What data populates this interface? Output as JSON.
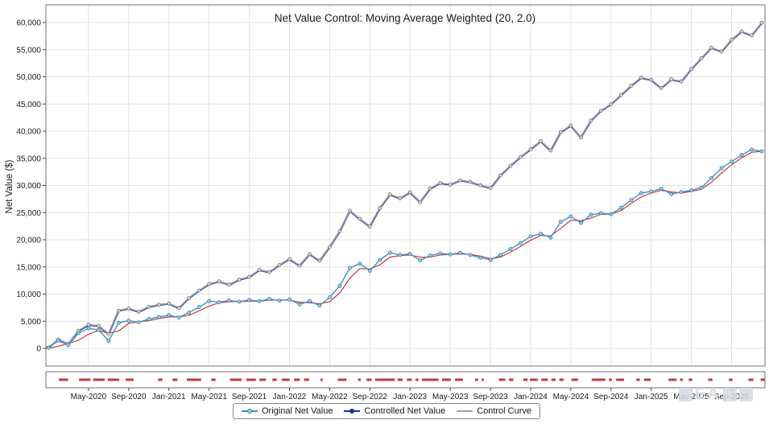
{
  "title": "Net Value Control: Moving Average Weighted (20, 2.0)",
  "ylabel": "Net Value ($)",
  "watermark": {
    "text": "EA"
  },
  "legend": {
    "items": [
      {
        "label": "Original Net Value"
      },
      {
        "label": "Controlled Net Value"
      },
      {
        "label": "Control Curve"
      }
    ]
  },
  "chart_data": {
    "type": "line",
    "title": "Net Value Control: Moving Average Weighted (20, 2.0)",
    "xlabel": "",
    "ylabel": "Net Value ($)",
    "grid": true,
    "legend_position": "bottom-center",
    "x_start_month": "2020-01",
    "x_end_month": "2025-12",
    "x_tick_month_indices": [
      4,
      8,
      12,
      16,
      20,
      24,
      28,
      32,
      36,
      40,
      44,
      48,
      52,
      56,
      60,
      64,
      68
    ],
    "x_tick_labels": [
      "May-2020",
      "Sep-2020",
      "Jan-2021",
      "May-2021",
      "Sep-2021",
      "Jan-2022",
      "May-2022",
      "Sep-2022",
      "Jan-2023",
      "May-2023",
      "Sep-2023",
      "Jan-2024",
      "May-2024",
      "Sep-2024",
      "Jan-2025",
      "May-2025",
      "Sep-2025"
    ],
    "y_ticks": [
      0,
      5000,
      10000,
      15000,
      20000,
      25000,
      30000,
      35000,
      40000,
      45000,
      50000,
      55000,
      60000
    ],
    "y_tick_labels": [
      "0",
      "5,000",
      "10,000",
      "15,000",
      "20,000",
      "25,000",
      "30,000",
      "35,000",
      "40,000",
      "45,000",
      "50,000",
      "55,000",
      "60,000"
    ],
    "ylim": [
      -3300,
      63300
    ],
    "colors": {
      "grid": "#e1e1e1",
      "axis_border": "#6f6f6f",
      "text": "#1a1a1a",
      "signal_red": "#c23b3b"
    },
    "series": [
      {
        "name": "Original Net Value",
        "color": "#3f93c6",
        "marker_fill": "#9fd0e8",
        "marker_edge": "#2c78ab",
        "markers": true,
        "width": 1.4,
        "values": [
          100,
          1400,
          600,
          2800,
          3700,
          3400,
          1400,
          4700,
          5100,
          4800,
          5400,
          5800,
          6100,
          5700,
          6600,
          7600,
          8700,
          8500,
          8800,
          8600,
          8900,
          8700,
          9100,
          8800,
          9000,
          8100,
          8700,
          7900,
          9400,
          11500,
          14800,
          15600,
          14300,
          16300,
          17600,
          17200,
          17400,
          16200,
          17100,
          17500,
          17300,
          17600,
          17200,
          16700,
          16300,
          17200,
          18300,
          19400,
          20600,
          21100,
          20400,
          23300,
          24300,
          23100,
          24600,
          24900,
          24700,
          25900,
          27300,
          28600,
          28900,
          29400,
          28400,
          28800,
          29100,
          29600,
          31400,
          33200,
          34400,
          35600,
          36600,
          36300
        ]
      },
      {
        "name": "Controlled Net Value",
        "color": "#1b2f96",
        "markers": false,
        "width": 2.2,
        "values": [
          100,
          1600,
          800,
          3200,
          4300,
          4100,
          2600,
          6900,
          7300,
          6700,
          7600,
          8000,
          8200,
          7400,
          9200,
          10600,
          11800,
          12300,
          11700,
          12600,
          13100,
          14400,
          14000,
          15300,
          16400,
          15200,
          17300,
          16100,
          18600,
          21500,
          25300,
          23800,
          22400,
          25800,
          28300,
          27600,
          28700,
          26900,
          29400,
          30400,
          30100,
          30900,
          30600,
          30000,
          29500,
          31800,
          33600,
          35200,
          36600,
          38100,
          36400,
          39800,
          41000,
          38800,
          41900,
          43700,
          44900,
          46600,
          48300,
          49800,
          49400,
          47900,
          49500,
          49100,
          51400,
          53400,
          55300,
          54600,
          56800,
          58300,
          57600,
          59900
        ]
      },
      {
        "name": "Control Curve",
        "color": "#a0a0a0",
        "marker_fill": "#d6d6d6",
        "marker_edge": "#6e6e6e",
        "markers": true,
        "width": 1.3,
        "values": [
          150,
          1650,
          850,
          3250,
          4350,
          4150,
          2650,
          6950,
          7350,
          6750,
          7650,
          8050,
          8250,
          7450,
          9250,
          10650,
          11850,
          12350,
          11750,
          12650,
          13150,
          14450,
          14050,
          15350,
          16450,
          15250,
          17350,
          16150,
          18650,
          21550,
          25350,
          23850,
          22450,
          25850,
          28350,
          27650,
          28750,
          26950,
          29450,
          30450,
          30150,
          30950,
          30650,
          30050,
          29550,
          31850,
          33650,
          35250,
          36650,
          38150,
          36450,
          39850,
          41050,
          38850,
          41950,
          43750,
          44950,
          46650,
          48350,
          49850,
          49450,
          47950,
          49550,
          49150,
          51450,
          53450,
          55350,
          54650,
          56850,
          58350,
          57650,
          59950
        ]
      },
      {
        "name": "red_line_unlabeled",
        "color": "#c53a38",
        "markers": false,
        "width": 1.2,
        "values": [
          0,
          400,
          900,
          1500,
          2600,
          3300,
          2800,
          3200,
          4600,
          4900,
          5100,
          5500,
          5800,
          5800,
          6100,
          6900,
          7800,
          8400,
          8600,
          8600,
          8700,
          8700,
          8900,
          8900,
          8900,
          8500,
          8400,
          8200,
          8600,
          10200,
          12900,
          14700,
          14600,
          15400,
          16800,
          17100,
          17200,
          16800,
          16800,
          17200,
          17300,
          17400,
          17300,
          17000,
          16500,
          16800,
          17700,
          18800,
          19900,
          20800,
          20700,
          22100,
          23600,
          23500,
          24000,
          24700,
          24700,
          25400,
          26700,
          27900,
          28600,
          29100,
          28800,
          28600,
          28900,
          29300,
          30600,
          32300,
          33800,
          35100,
          36100,
          36300
        ]
      }
    ],
    "signal_strip": {
      "description": "on/off signal shown as red dashes",
      "color": "#c23b3b",
      "segments": [
        [
          0.018,
          0.031
        ],
        [
          0.046,
          0.062
        ],
        [
          0.066,
          0.082
        ],
        [
          0.086,
          0.102
        ],
        [
          0.111,
          0.122
        ],
        [
          0.156,
          0.162
        ],
        [
          0.176,
          0.183
        ],
        [
          0.196,
          0.216
        ],
        [
          0.23,
          0.236
        ],
        [
          0.256,
          0.272
        ],
        [
          0.279,
          0.292
        ],
        [
          0.297,
          0.306
        ],
        [
          0.315,
          0.321
        ],
        [
          0.328,
          0.339
        ],
        [
          0.345,
          0.353
        ],
        [
          0.359,
          0.366
        ],
        [
          0.382,
          0.385
        ],
        [
          0.406,
          0.418
        ],
        [
          0.434,
          0.438
        ],
        [
          0.446,
          0.453
        ],
        [
          0.458,
          0.485
        ],
        [
          0.489,
          0.496
        ],
        [
          0.502,
          0.509
        ],
        [
          0.514,
          0.518
        ],
        [
          0.523,
          0.546
        ],
        [
          0.551,
          0.563
        ],
        [
          0.569,
          0.58
        ],
        [
          0.597,
          0.601
        ],
        [
          0.606,
          0.609
        ],
        [
          0.63,
          0.639
        ],
        [
          0.644,
          0.65
        ],
        [
          0.664,
          0.67
        ],
        [
          0.673,
          0.684
        ],
        [
          0.689,
          0.698
        ],
        [
          0.703,
          0.709
        ],
        [
          0.714,
          0.72
        ],
        [
          0.731,
          0.74
        ],
        [
          0.759,
          0.778
        ],
        [
          0.783,
          0.787
        ],
        [
          0.793,
          0.804
        ],
        [
          0.821,
          0.826
        ],
        [
          0.832,
          0.841
        ],
        [
          0.866,
          0.877
        ],
        [
          0.882,
          0.886
        ],
        [
          0.894,
          0.899
        ],
        [
          0.921,
          0.927
        ],
        [
          0.95,
          0.955
        ],
        [
          0.977,
          0.984
        ],
        [
          0.994,
          1.0
        ]
      ]
    }
  }
}
